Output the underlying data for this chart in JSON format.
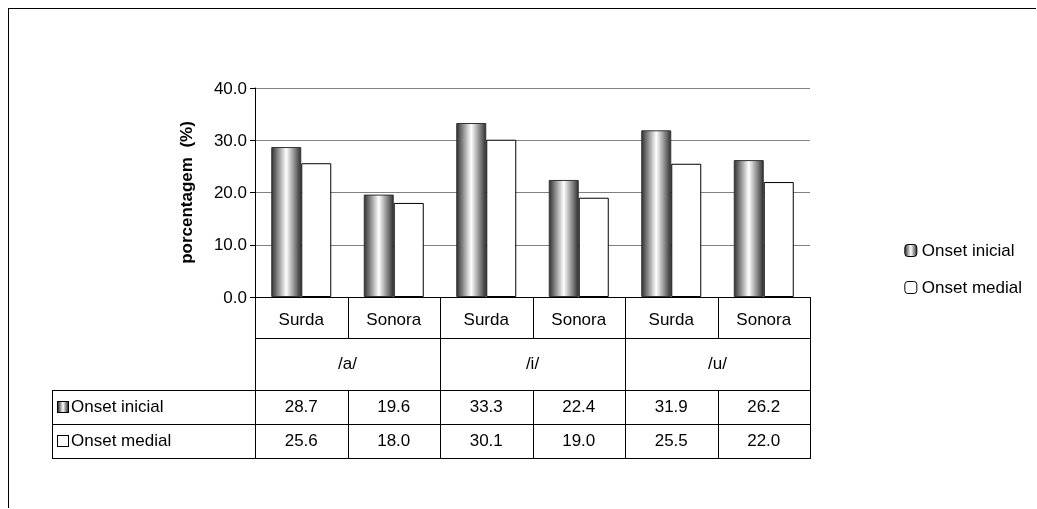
{
  "chart_data": {
    "type": "bar",
    "ylabel": "porcentagem  (%)",
    "categories": [
      "Surda",
      "Sonora",
      "Surda",
      "Sonora",
      "Surda",
      "Sonora"
    ],
    "annotations": [
      "/a/",
      "/i/",
      "/u/"
    ],
    "series": [
      {
        "name": "Onset inicial",
        "color": "#333333",
        "values": [
          28.7,
          19.6,
          33.3,
          22.4,
          31.9,
          26.2
        ],
        "value_labels": [
          "28.7",
          "19.6",
          "33.3",
          "22.4",
          "31.9",
          "26.2"
        ]
      },
      {
        "name": "Onset medial",
        "color": "#ffffff",
        "values": [
          25.6,
          18.0,
          30.1,
          19.0,
          25.5,
          22.0
        ],
        "value_labels": [
          "25.6",
          "18.0",
          "30.1",
          "19.0",
          "25.5",
          "22.0"
        ]
      }
    ],
    "ylim": [
      0,
      40
    ],
    "yticks": [
      {
        "value": 0,
        "label": "0.0"
      },
      {
        "value": 10,
        "label": "10.0"
      },
      {
        "value": 20,
        "label": "20.0"
      },
      {
        "value": 30,
        "label": "30.0"
      },
      {
        "value": 40,
        "label": "40.0"
      }
    ],
    "grid": "y",
    "legend": "right"
  }
}
